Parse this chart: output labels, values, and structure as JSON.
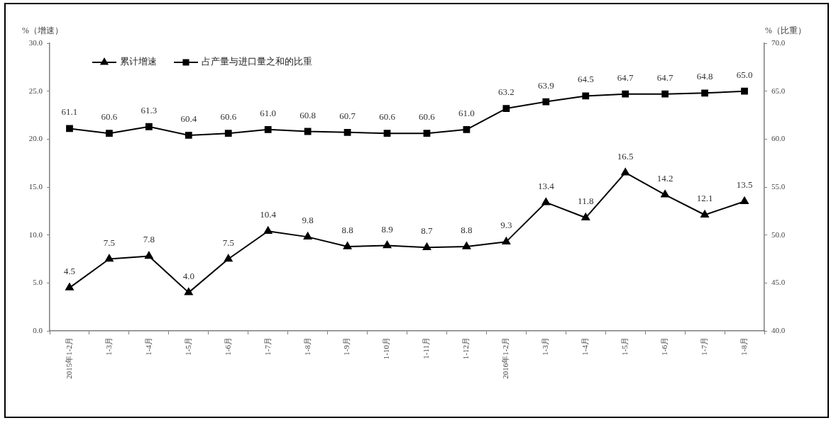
{
  "chart_data": {
    "type": "line",
    "ylabel": "%（增速）",
    "y2label": "%（比重）",
    "categories": [
      "2015年1-2月",
      "1-3月",
      "1-4月",
      "1-5月",
      "1-6月",
      "1-7月",
      "1-8月",
      "1-9月",
      "1-10月",
      "1-11月",
      "1-12月",
      "2016年1-2月",
      "1-3月",
      "1-4月",
      "1-5月",
      "1-6月",
      "1-7月",
      "1-8月"
    ],
    "series": [
      {
        "name": "累计增速",
        "color": "#000000",
        "marker": "triangle",
        "values": [
          4.5,
          7.5,
          7.8,
          4.0,
          7.5,
          10.4,
          9.8,
          8.8,
          8.9,
          8.7,
          8.8,
          9.3,
          13.4,
          11.8,
          16.5,
          14.2,
          12.1,
          13.5
        ],
        "value_labels": [
          "4.5",
          "7.5",
          "7.8",
          "4.0",
          "7.5",
          "10.4",
          "9.8",
          "8.8",
          "8.9",
          "8.7",
          "8.8",
          "9.3",
          "13.4",
          "11.8",
          "16.5",
          "14.2",
          "12.1",
          "13.5"
        ]
      },
      {
        "name": "占产量与进口量之和的比重",
        "color": "#000000",
        "marker": "square",
        "axis": "y2",
        "values": [
          61.1,
          60.6,
          61.3,
          60.4,
          60.6,
          61.0,
          60.8,
          60.7,
          60.6,
          60.6,
          61.0,
          63.2,
          63.9,
          64.5,
          64.7,
          64.7,
          64.8,
          65.0
        ],
        "value_labels": [
          "61.1",
          "60.6",
          "61.3",
          "60.4",
          "60.6",
          "61.0",
          "60.8",
          "60.7",
          "60.6",
          "60.6",
          "61.0",
          "63.2",
          "63.9",
          "64.5",
          "64.7",
          "64.7",
          "64.8",
          "65.0"
        ]
      }
    ],
    "ylim": [
      0,
      30
    ],
    "yticks": [
      {
        "value": 0,
        "label": "0.0"
      },
      {
        "value": 5,
        "label": "5.0"
      },
      {
        "value": 10,
        "label": "10.0"
      },
      {
        "value": 15,
        "label": "15.0"
      },
      {
        "value": 20,
        "label": "20.0"
      },
      {
        "value": 25,
        "label": "25.0"
      },
      {
        "value": 30,
        "label": "30.0"
      }
    ],
    "y2lim": [
      40,
      70
    ],
    "y2ticks": [
      {
        "value": 40,
        "label": "40.0"
      },
      {
        "value": 45,
        "label": "45.0"
      },
      {
        "value": 50,
        "label": "50.0"
      },
      {
        "value": 55,
        "label": "55.0"
      },
      {
        "value": 60,
        "label": "60.0"
      },
      {
        "value": 65,
        "label": "65.0"
      },
      {
        "value": 70,
        "label": "70.0"
      }
    ],
    "grid": false,
    "legend": "top left",
    "line_style": "solid"
  }
}
